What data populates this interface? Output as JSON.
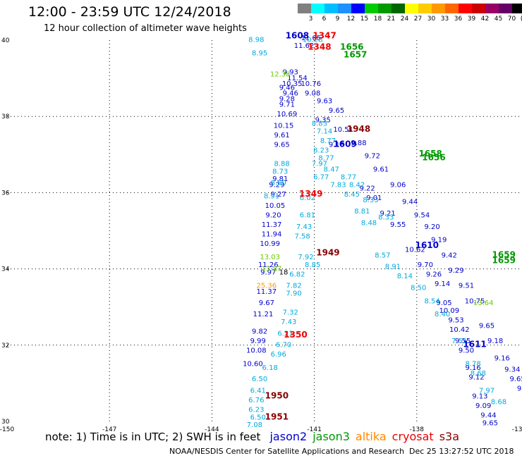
{
  "header": {
    "title": "12:00 - 23:59 UTC 12/24/2018",
    "subtitle": "12 hour collection of altimeter wave heights"
  },
  "legend_scale": {
    "unit": "(ft)",
    "labels": [
      "3",
      "6",
      "9",
      "12",
      "15",
      "18",
      "21",
      "24",
      "27",
      "30",
      "33",
      "36",
      "39",
      "42",
      "45",
      "70"
    ],
    "colors": [
      "#808080",
      "#00ffff",
      "#00bfff",
      "#1e90ff",
      "#0000ff",
      "#00cc00",
      "#009900",
      "#006600",
      "#ffff00",
      "#ffcc00",
      "#ff9900",
      "#ff6600",
      "#ff0000",
      "#cc0000",
      "#990066",
      "#660066",
      "#000000"
    ]
  },
  "note": {
    "text": "note: 1) Time is in UTC; 2) SWH is in feet",
    "satellites": [
      {
        "name": "jason2",
        "color": "#0000cc"
      },
      {
        "name": "jason3",
        "color": "#009900"
      },
      {
        "name": "altika",
        "color": "#ff8800"
      },
      {
        "name": "cryosat",
        "color": "#ee0000"
      },
      {
        "name": "s3a",
        "color": "#880000"
      }
    ]
  },
  "footer": {
    "credit": "NOAA/NESDIS Center for Satellite Applications and Research",
    "timestamp": "Dec 25 13:27:52 UTC 2018"
  },
  "colors": {
    "axis": "#000000",
    "grid": "#000000",
    "background": "#ffffff"
  },
  "chart_data": {
    "type": "scatter",
    "xlim": [
      -150,
      -135
    ],
    "ylim": [
      30,
      40
    ],
    "x_ticks": [
      "-150",
      "-147",
      "-144",
      "-141",
      "-138",
      "-135"
    ],
    "y_ticks": [
      "30",
      "32",
      "34",
      "36",
      "38",
      "40"
    ],
    "grid": true,
    "series": [
      {
        "color": "#0000cc",
        "points": [
          [
            -141.1,
            40,
            "11.65"
          ],
          [
            -141.3,
            39.8,
            "11.62"
          ],
          [
            -141.7,
            39.1,
            "9.93"
          ],
          [
            -141.5,
            38.95,
            "11.54"
          ],
          [
            -141.65,
            38.8,
            "10.35"
          ],
          [
            -141.8,
            38.7,
            "9.46"
          ],
          [
            -141.7,
            38.55,
            "9.46"
          ],
          [
            -141.8,
            38.4,
            "9.28"
          ],
          [
            -141.8,
            38.25,
            "9.71"
          ],
          [
            -141.8,
            38,
            "10.69"
          ],
          [
            -141.9,
            37.7,
            "10.15"
          ],
          [
            -141.95,
            37.45,
            "9.61"
          ],
          [
            -141.95,
            37.2,
            "9.65"
          ],
          [
            -142,
            36.3,
            "9.81"
          ],
          [
            -142.1,
            36.15,
            "9.29"
          ],
          [
            -142.05,
            35.9,
            "9.27"
          ],
          [
            -142.15,
            35.6,
            "10.05"
          ],
          [
            -142.2,
            35.35,
            "9.20"
          ],
          [
            -142.25,
            35.1,
            "11.37"
          ],
          [
            -142.25,
            34.85,
            "11.94"
          ],
          [
            -142.3,
            34.6,
            "10.99"
          ],
          [
            -142.35,
            34.05,
            "11.26"
          ],
          [
            -142.35,
            33.85,
            "9.97"
          ],
          [
            -142.4,
            33.35,
            "11.37"
          ],
          [
            -142.4,
            33.05,
            "9.67"
          ],
          [
            -142.5,
            32.75,
            "11.21"
          ],
          [
            -142.6,
            32.3,
            "9.82"
          ],
          [
            -142.65,
            32.05,
            "9.99"
          ],
          [
            -142.7,
            31.8,
            "10.08"
          ],
          [
            -142.8,
            31.45,
            "10.60"
          ],
          [
            -141.05,
            38.55,
            "9.08"
          ],
          [
            -140.75,
            37.85,
            "9.35"
          ],
          [
            -140.35,
            37.2,
            "9.18"
          ],
          [
            -139.45,
            36.05,
            "9.22"
          ],
          [
            -139.25,
            35.8,
            "9.01"
          ],
          [
            -138.85,
            35.4,
            "9.21"
          ],
          [
            -138.55,
            35.1,
            "9.55"
          ],
          [
            -138.05,
            34.45,
            "10.62"
          ],
          [
            -137.75,
            34.05,
            "9.70"
          ],
          [
            -137.5,
            33.8,
            "9.26"
          ],
          [
            -137.25,
            33.55,
            "9.14"
          ],
          [
            -137.2,
            33.05,
            "9.05"
          ],
          [
            -137.05,
            32.85,
            "10.09"
          ],
          [
            -136.85,
            32.6,
            "9.53"
          ],
          [
            -136.75,
            32.35,
            "10.42"
          ],
          [
            -136.65,
            32.05,
            "9.55"
          ],
          [
            -136.55,
            31.8,
            "9.50"
          ],
          [
            -136.35,
            31.35,
            "9.16"
          ],
          [
            -136.25,
            31.1,
            "9.12"
          ],
          [
            -136.15,
            30.6,
            "9.13"
          ],
          [
            -136.05,
            30.35,
            "9.09"
          ],
          [
            -135.9,
            30.1,
            "9.44"
          ],
          [
            -135.85,
            29.9,
            "9.65"
          ],
          [
            -141.1,
            38.8,
            "10.76"
          ],
          [
            -140.7,
            38.35,
            "9.63"
          ],
          [
            -140.35,
            38.1,
            "9.65"
          ],
          [
            -140.15,
            37.6,
            "10.51"
          ],
          [
            -139.7,
            37.25,
            "9.88"
          ],
          [
            -139.3,
            36.9,
            "9.72"
          ],
          [
            -139.05,
            36.55,
            "9.61"
          ],
          [
            -138.55,
            36.15,
            "9.06"
          ],
          [
            -138.2,
            35.7,
            "9.44"
          ],
          [
            -137.85,
            35.35,
            "9.54"
          ],
          [
            -137.55,
            35.05,
            "9.20"
          ],
          [
            -137.35,
            34.7,
            "9.19"
          ],
          [
            -137.05,
            34.3,
            "9.42"
          ],
          [
            -136.85,
            33.9,
            "9.29"
          ],
          [
            -136.55,
            33.5,
            "9.51"
          ],
          [
            -136.3,
            33.1,
            "10.75"
          ],
          [
            -135.95,
            32.45,
            "9.65"
          ],
          [
            -135.7,
            32.05,
            "9.18"
          ],
          [
            -135.5,
            31.6,
            "9.16"
          ],
          [
            -135.2,
            31.3,
            "9.34"
          ],
          [
            -135.05,
            31.05,
            "9.65"
          ],
          [
            -134.9,
            30.8,
            "9.0"
          ]
        ]
      },
      {
        "color": "#00aadd",
        "points": [
          [
            -142.7,
            39.95,
            "8.98"
          ],
          [
            -142.6,
            39.6,
            "8.95"
          ],
          [
            -141.05,
            39.95,
            "10.28"
          ],
          [
            -140.85,
            37.75,
            "8.83"
          ],
          [
            -140.7,
            37.55,
            "7.14"
          ],
          [
            -140.6,
            37.3,
            "8.77"
          ],
          [
            -140.8,
            37.05,
            "8.23"
          ],
          [
            -140.65,
            36.85,
            "8.77"
          ],
          [
            -140.85,
            36.7,
            "7.97"
          ],
          [
            -140.5,
            36.55,
            "8.47"
          ],
          [
            -140.8,
            36.35,
            "6.77"
          ],
          [
            -140.3,
            36.15,
            "7.83"
          ],
          [
            -141.2,
            35.8,
            "6.02"
          ],
          [
            -139.9,
            35.9,
            "8.45"
          ],
          [
            -141.2,
            35.35,
            "6.81"
          ],
          [
            -141.3,
            35.05,
            "7.43"
          ],
          [
            -141.35,
            34.8,
            "7.58"
          ],
          [
            -139.6,
            35.45,
            "8.81"
          ],
          [
            -139.4,
            35.15,
            "8.48"
          ],
          [
            -141.25,
            34.25,
            "7.92"
          ],
          [
            -141.05,
            34.05,
            "8.85"
          ],
          [
            -139.0,
            34.3,
            "8.57"
          ],
          [
            -138.7,
            34,
            "8.91"
          ],
          [
            -138.35,
            33.75,
            "8.14"
          ],
          [
            -141.95,
            36.7,
            "8.88"
          ],
          [
            -142.0,
            36.5,
            "8.73"
          ],
          [
            -142.05,
            36.2,
            "8.60"
          ],
          [
            -142.25,
            35.85,
            "8.91"
          ],
          [
            -141.5,
            33.8,
            "6.82"
          ],
          [
            -141.6,
            33.5,
            "7.82"
          ],
          [
            -141.6,
            33.3,
            "7.90"
          ],
          [
            -141.7,
            32.8,
            "7.32"
          ],
          [
            -141.75,
            32.55,
            "7.43"
          ],
          [
            -141.85,
            32.25,
            "6.21"
          ],
          [
            -141.9,
            31.95,
            "6.70"
          ],
          [
            -142.05,
            31.7,
            "6.96"
          ],
          [
            -142.3,
            31.35,
            "6.18"
          ],
          [
            -142.6,
            31.05,
            "6.50"
          ],
          [
            -142.65,
            30.75,
            "6.41"
          ],
          [
            -142.7,
            30.5,
            "6.76"
          ],
          [
            -142.7,
            30.25,
            "6.23"
          ],
          [
            -142.65,
            30.05,
            "6.50"
          ],
          [
            -142.75,
            29.85,
            "7.08"
          ],
          [
            -137.95,
            33.45,
            "8.50"
          ],
          [
            -137.55,
            33.1,
            "8.54"
          ],
          [
            -137.25,
            32.75,
            "8.40"
          ],
          [
            -136.75,
            32.05,
            "7.51"
          ],
          [
            -136.35,
            31.45,
            "8.78"
          ],
          [
            -136.2,
            31.2,
            "8.68"
          ],
          [
            -135.95,
            30.75,
            "7.97"
          ],
          [
            -135.6,
            30.45,
            "8.68"
          ],
          [
            -140.0,
            36.35,
            "8.77"
          ],
          [
            -139.75,
            36.15,
            "8.42"
          ],
          [
            -139.35,
            35.75,
            "8.33"
          ],
          [
            -138.9,
            35.3,
            "8.33"
          ]
        ]
      },
      {
        "color": "#66cc00",
        "points": [
          [
            -142.0,
            39.05,
            "12.38"
          ],
          [
            -142.3,
            34.25,
            "13.03"
          ],
          [
            -142.25,
            33.95,
            "13.87"
          ],
          [
            -136.05,
            33.05,
            "13.64"
          ]
        ]
      },
      {
        "color": "#ff9900",
        "points": [
          [
            -142.4,
            33.5,
            "25.36"
          ]
        ]
      },
      {
        "color": "#000000",
        "points": [
          [
            -141.9,
            33.85,
            "18"
          ]
        ]
      }
    ],
    "passes": [
      {
        "time": "1608",
        "x": -141.5,
        "y": 40.05,
        "color": "#0000cc"
      },
      {
        "time": "1609",
        "x": -140.1,
        "y": 37.2,
        "color": "#0000cc"
      },
      {
        "time": "1610",
        "x": -137.7,
        "y": 34.55,
        "color": "#0000cc"
      },
      {
        "time": "1611",
        "x": -136.3,
        "y": 31.95,
        "color": "#0000cc"
      },
      {
        "time": "1347",
        "x": -140.7,
        "y": 40.05,
        "color": "#ee0000"
      },
      {
        "time": "1348",
        "x": -140.85,
        "y": 39.75,
        "color": "#ee0000"
      },
      {
        "time": "1349",
        "x": -141.1,
        "y": 35.9,
        "color": "#ee0000"
      },
      {
        "time": "1350",
        "x": -141.55,
        "y": 32.2,
        "color": "#ee0000"
      },
      {
        "time": "1948",
        "x": -139.7,
        "y": 37.6,
        "color": "#880000"
      },
      {
        "time": "1949",
        "x": -140.6,
        "y": 34.35,
        "color": "#880000"
      },
      {
        "time": "1950",
        "x": -142.1,
        "y": 30.6,
        "color": "#880000"
      },
      {
        "time": "1951",
        "x": -142.1,
        "y": 30.05,
        "color": "#880000"
      },
      {
        "time": "1658",
        "x": -137.6,
        "y": 36.95,
        "color": "#009900"
      },
      {
        "time": "1656",
        "x": -137.5,
        "y": 36.85,
        "color": "#009900"
      },
      {
        "time": "1659",
        "x": -135.45,
        "y": 34.3,
        "color": "#009900"
      },
      {
        "time": "1659",
        "x": -135.45,
        "y": 34.15,
        "color": "#009900"
      },
      {
        "time": "1656",
        "x": -139.9,
        "y": 39.75,
        "color": "#009900"
      },
      {
        "time": "1657",
        "x": -139.8,
        "y": 39.55,
        "color": "#009900"
      }
    ]
  }
}
